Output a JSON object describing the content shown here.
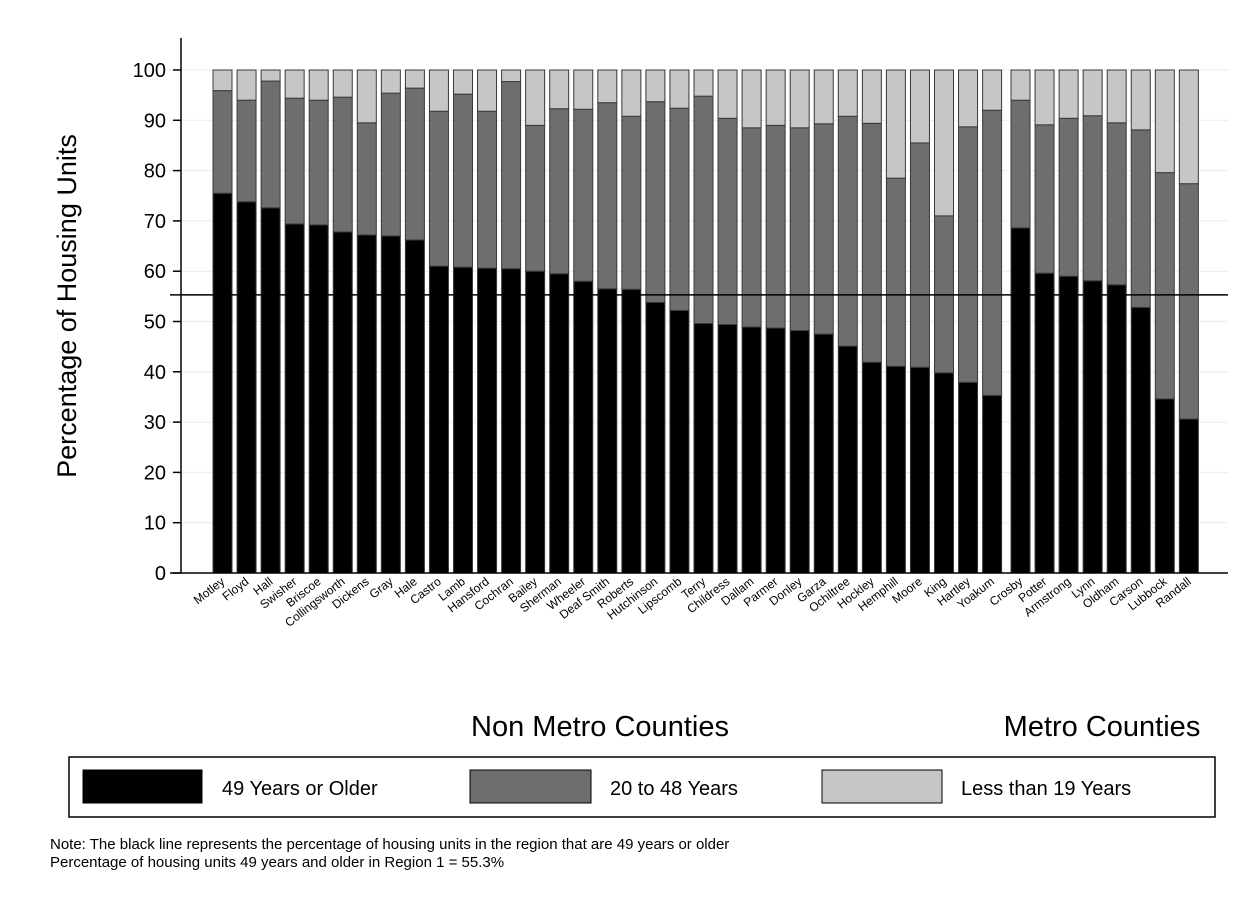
{
  "chart_data": {
    "type": "bar",
    "stacked": true,
    "ylabel": "Percentage of Housing Units",
    "xlabel": "",
    "ylim": [
      0,
      100
    ],
    "yticks": [
      0,
      10,
      20,
      30,
      40,
      50,
      60,
      70,
      80,
      90,
      100
    ],
    "grid": "horizontal light gridlines",
    "reference_line": {
      "value": 55.3
    },
    "groups": [
      {
        "label": "Non Metro Counties",
        "categories": [
          "Motley",
          "Floyd",
          "Hall",
          "Swisher",
          "Briscoe",
          "Collingsworth",
          "Dickens",
          "Gray",
          "Hale",
          "Castro",
          "Lamb",
          "Hansford",
          "Cochran",
          "Bailey",
          "Sherman",
          "Wheeler",
          "Deaf Smith",
          "Roberts",
          "Hutchinson",
          "Lipscomb",
          "Terry",
          "Childress",
          "Dallam",
          "Parmer",
          "Donley",
          "Garza",
          "Ochiltree",
          "Hockley",
          "Hemphill",
          "Moore",
          "King",
          "Hartley",
          "Yoakum"
        ],
        "series": [
          {
            "name": "49 Years or Older",
            "color": "#000000",
            "values": [
              75.5,
              73.8,
              72.6,
              69.4,
              69.2,
              67.8,
              67.2,
              67.0,
              66.2,
              61.0,
              60.8,
              60.6,
              60.5,
              60.0,
              59.5,
              58.0,
              56.5,
              56.4,
              53.8,
              52.2,
              49.6,
              49.4,
              48.9,
              48.7,
              48.2,
              47.5,
              45.1,
              41.9,
              41.1,
              40.9,
              39.8,
              37.9,
              35.3
            ]
          },
          {
            "name": "20 to 48 Years",
            "color": "#6e6e6e",
            "values": [
              20.4,
              20.2,
              25.2,
              25.0,
              24.8,
              26.8,
              22.3,
              28.4,
              30.2,
              30.8,
              34.4,
              31.2,
              37.2,
              29.0,
              32.8,
              34.2,
              37.0,
              34.4,
              39.9,
              40.2,
              45.2,
              41.0,
              39.6,
              40.3,
              40.3,
              41.8,
              45.7,
              47.5,
              37.4,
              44.6,
              31.2,
              50.8,
              56.7
            ]
          },
          {
            "name": "Less than 19 Years",
            "color": "#c6c6c6",
            "values": [
              4.1,
              6.0,
              2.2,
              5.6,
              6.0,
              5.4,
              10.5,
              4.6,
              3.6,
              8.2,
              4.8,
              8.2,
              2.3,
              11.0,
              7.7,
              7.8,
              6.5,
              9.2,
              6.3,
              7.6,
              5.2,
              9.6,
              11.5,
              11.0,
              11.5,
              10.7,
              9.2,
              10.6,
              21.5,
              14.5,
              29.0,
              11.3,
              8.0
            ]
          }
        ]
      },
      {
        "label": "Metro Counties",
        "categories": [
          "Crosby",
          "Potter",
          "Armstrong",
          "Lynn",
          "Oldham",
          "Carson",
          "Lubbock",
          "Randall"
        ],
        "series": [
          {
            "name": "49 Years or Older",
            "color": "#000000",
            "values": [
              68.6,
              59.6,
              59.0,
              58.1,
              57.3,
              52.8,
              34.6,
              30.6
            ]
          },
          {
            "name": "20 to 48 Years",
            "color": "#6e6e6e",
            "values": [
              25.4,
              29.5,
              31.4,
              32.8,
              32.2,
              35.3,
              45.0,
              46.8
            ]
          },
          {
            "name": "Less than 19 Years",
            "color": "#c6c6c6",
            "values": [
              6.0,
              10.9,
              9.6,
              9.1,
              10.5,
              11.9,
              20.4,
              22.6
            ]
          }
        ]
      }
    ],
    "legend": {
      "placement": "bottom",
      "entries": [
        {
          "label": "49 Years or Older",
          "color": "#000000"
        },
        {
          "label": "20 to 48 Years",
          "color": "#6e6e6e"
        },
        {
          "label": "Less than 19 Years",
          "color": "#c6c6c6"
        }
      ]
    }
  },
  "notes": [
    "Note: The black line represents the percentage of housing units in the region that are 49 years or older",
    "Percentage of housing units 49 years and older in Region 1 = 55.3%"
  ]
}
